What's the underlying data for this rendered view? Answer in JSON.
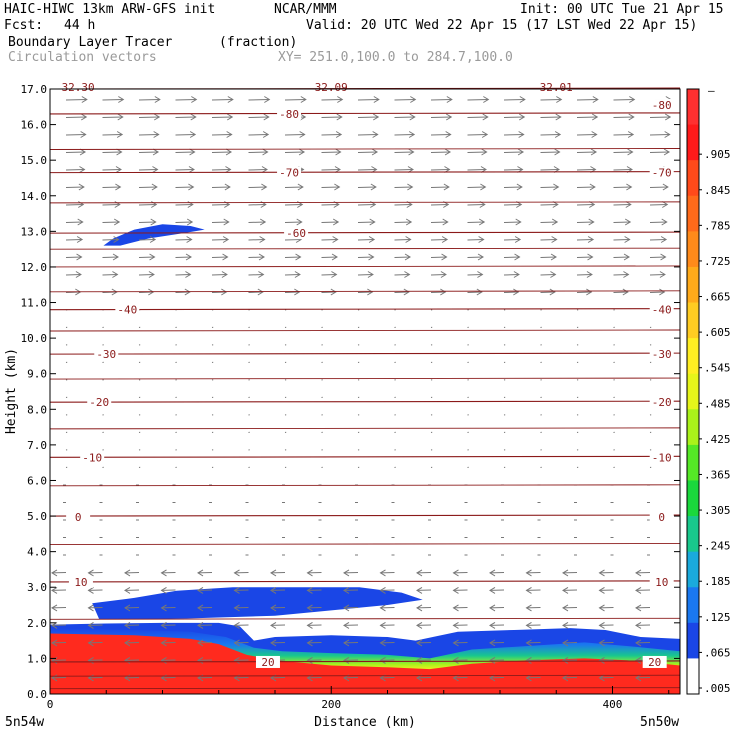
{
  "header": {
    "model": "HAIC-HIWC 13km ARW-GFS init",
    "org": "NCAR/MMM",
    "init": "Init: 00 UTC Tue 21 Apr 15",
    "fcst_label": "Fcst:",
    "fcst_value": "44 h",
    "valid": "Valid: 20 UTC Wed 22 Apr 15 (17 LST Wed 22 Apr 15)",
    "field": "Boundary Layer Tracer",
    "field_units": "(fraction)",
    "overlay": "Circulation vectors",
    "xy": "XY= 251.0,100.0 to 284.7,100.0"
  },
  "chart_data": {
    "type": "heatmap",
    "title": "Boundary Layer Tracer (fraction)",
    "xlabel": "Distance (km)",
    "ylabel": "Height (km)",
    "xlim": [
      0,
      448
    ],
    "ylim": [
      0,
      17
    ],
    "x_ticks": [
      0,
      200,
      400
    ],
    "x_tick_labels": [
      "0",
      "200",
      "400"
    ],
    "y_ticks": [
      0,
      1,
      2,
      3,
      4,
      5,
      6,
      7,
      8,
      9,
      10,
      11,
      12,
      13,
      14,
      15,
      16,
      17
    ],
    "y_tick_labels": [
      "0.0",
      "1.0",
      "2.0",
      "3.0",
      "4.0",
      "5.0",
      "6.0",
      "7.0",
      "8.0",
      "9.0",
      "10.0",
      "11.0",
      "12.0",
      "13.0",
      "14.0",
      "15.0",
      "16.0",
      "17.0"
    ],
    "x_endpoints": [
      "5n54w",
      "5n50w"
    ],
    "colorbar": {
      "labels": [
        ".905",
        ".845",
        ".785",
        ".725",
        ".665",
        ".605",
        ".545",
        ".485",
        ".425",
        ".365",
        ".305",
        ".245",
        ".185",
        ".125",
        ".065",
        ".005"
      ],
      "colors": [
        "#ff3030",
        "#ff1a1a",
        "#ff4a1a",
        "#ff6a1a",
        "#ff8a1a",
        "#ffaa1a",
        "#ffcc22",
        "#ffee22",
        "#e6f51a",
        "#aaf21a",
        "#55e826",
        "#1ad83c",
        "#19c88c",
        "#1aaadc",
        "#1a78f0",
        "#1a46e6",
        "#ffffff"
      ],
      "top_marker": "–"
    },
    "isotherms": [
      {
        "value": -80,
        "height": 16.3
      },
      {
        "value": -70,
        "height": 14.65
      },
      {
        "value": -60,
        "height": 12.95
      },
      {
        "value": -40,
        "height": 10.8
      },
      {
        "value": -30,
        "height": 9.55
      },
      {
        "value": -20,
        "height": 8.2
      },
      {
        "value": -10,
        "height": 6.65
      },
      {
        "value": 0,
        "height": 5.0
      },
      {
        "value": 10,
        "height": 3.15
      },
      {
        "value": 20,
        "height": 0.9
      }
    ],
    "isotherm_labels": [
      {
        "text": "-80",
        "x": 170,
        "y": 16.3
      },
      {
        "text": "-80",
        "x": 435,
        "y": 16.55
      },
      {
        "text": "-70",
        "x": 170,
        "y": 14.65
      },
      {
        "text": "-70",
        "x": 435,
        "y": 14.65
      },
      {
        "text": "-60",
        "x": 175,
        "y": 12.95
      },
      {
        "text": "-40",
        "x": 55,
        "y": 10.8
      },
      {
        "text": "-40",
        "x": 435,
        "y": 10.8
      },
      {
        "text": "-30",
        "x": 40,
        "y": 9.55
      },
      {
        "text": "-30",
        "x": 435,
        "y": 9.55
      },
      {
        "text": "-20",
        "x": 35,
        "y": 8.2
      },
      {
        "text": "-20",
        "x": 435,
        "y": 8.2
      },
      {
        "text": "-10",
        "x": 30,
        "y": 6.65
      },
      {
        "text": "-10",
        "x": 435,
        "y": 6.65
      },
      {
        "text": "0",
        "x": 20,
        "y": 4.98
      },
      {
        "text": "0",
        "x": 435,
        "y": 4.98
      },
      {
        "text": "10",
        "x": 22,
        "y": 3.15
      },
      {
        "text": "10",
        "x": 435,
        "y": 3.15
      },
      {
        "text": "20",
        "x": 155,
        "y": 0.9
      },
      {
        "text": "20",
        "x": 430,
        "y": 0.9
      }
    ],
    "top_labels": [
      {
        "text": "32.30",
        "x": 20
      },
      {
        "text": "32.09",
        "x": 200
      },
      {
        "text": "32.01",
        "x": 360
      }
    ],
    "boundary_layer": {
      "outer_top": [
        [
          0,
          1.95
        ],
        [
          40,
          1.98
        ],
        [
          80,
          2.0
        ],
        [
          120,
          2.0
        ],
        [
          135,
          1.9
        ],
        [
          145,
          1.5
        ],
        [
          160,
          1.6
        ],
        [
          200,
          1.65
        ],
        [
          240,
          1.6
        ],
        [
          260,
          1.5
        ],
        [
          290,
          1.75
        ],
        [
          330,
          1.8
        ],
        [
          370,
          1.85
        ],
        [
          395,
          1.8
        ],
        [
          420,
          1.6
        ],
        [
          448,
          1.55
        ]
      ],
      "green_top": [
        [
          0,
          1.85
        ],
        [
          60,
          1.8
        ],
        [
          100,
          1.75
        ],
        [
          125,
          1.6
        ],
        [
          145,
          1.3
        ],
        [
          165,
          1.2
        ],
        [
          200,
          1.15
        ],
        [
          240,
          1.1
        ],
        [
          270,
          1.0
        ],
        [
          300,
          1.25
        ],
        [
          340,
          1.35
        ],
        [
          380,
          1.45
        ],
        [
          410,
          1.35
        ],
        [
          448,
          1.2
        ]
      ],
      "red_top": [
        [
          0,
          1.7
        ],
        [
          60,
          1.65
        ],
        [
          100,
          1.55
        ],
        [
          120,
          1.4
        ],
        [
          140,
          1.1
        ],
        [
          160,
          0.95
        ],
        [
          200,
          0.8
        ],
        [
          240,
          0.75
        ],
        [
          270,
          0.7
        ],
        [
          300,
          0.85
        ],
        [
          340,
          0.95
        ],
        [
          380,
          1.0
        ],
        [
          410,
          0.95
        ],
        [
          448,
          0.8
        ]
      ]
    },
    "tracer_patches": [
      {
        "points": [
          [
            35,
            2.1
          ],
          [
            30,
            2.55
          ],
          [
            60,
            2.7
          ],
          [
            90,
            2.9
          ],
          [
            130,
            3.0
          ],
          [
            180,
            3.0
          ],
          [
            220,
            3.0
          ],
          [
            250,
            2.85
          ],
          [
            265,
            2.65
          ],
          [
            240,
            2.5
          ],
          [
            200,
            2.35
          ],
          [
            160,
            2.2
          ],
          [
            120,
            2.15
          ],
          [
            80,
            2.1
          ]
        ]
      },
      {
        "points": [
          [
            38,
            12.6
          ],
          [
            45,
            12.8
          ],
          [
            60,
            13.05
          ],
          [
            80,
            13.2
          ],
          [
            100,
            13.15
          ],
          [
            110,
            13.05
          ],
          [
            95,
            12.95
          ],
          [
            70,
            12.8
          ],
          [
            50,
            12.6
          ]
        ]
      }
    ]
  }
}
